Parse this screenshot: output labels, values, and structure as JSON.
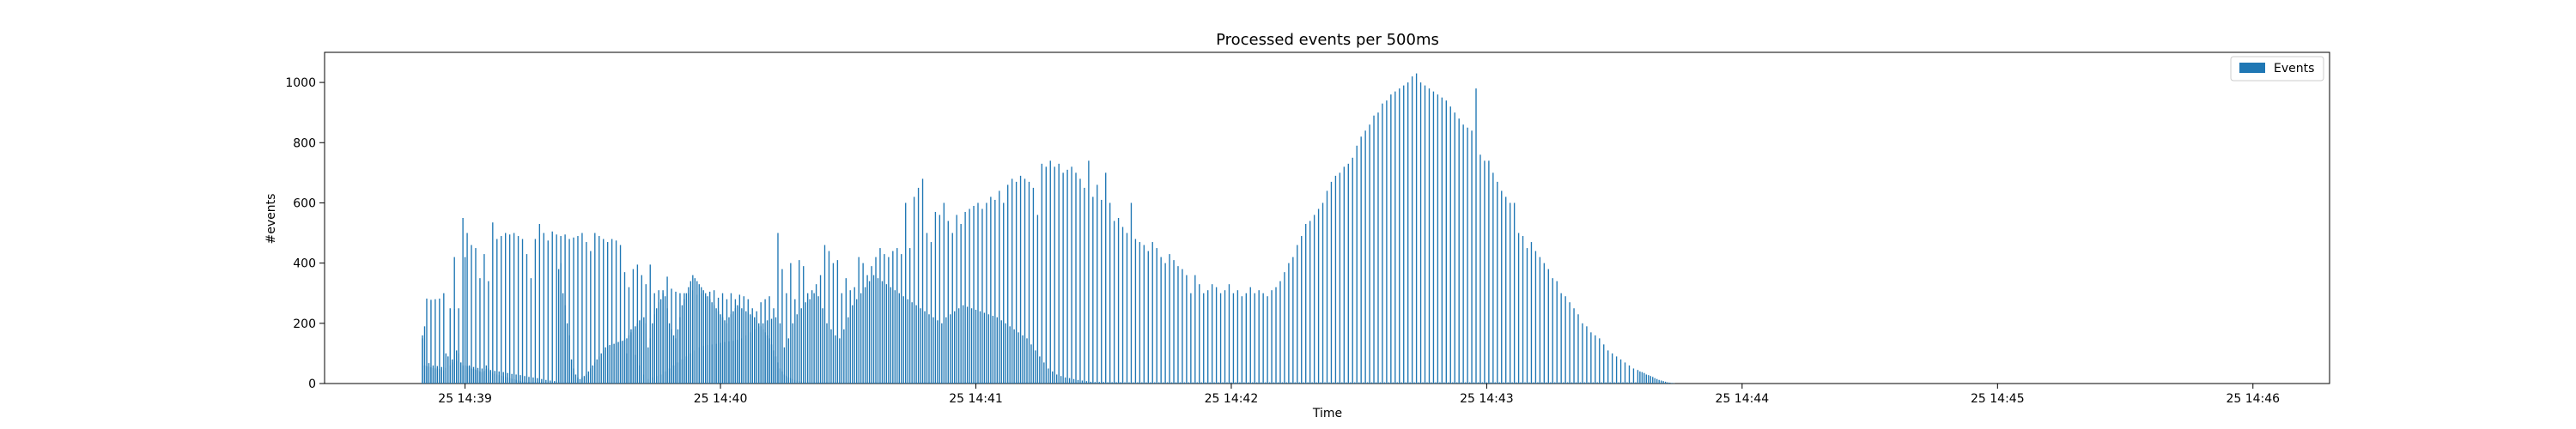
{
  "chart_data": {
    "type": "bar",
    "title": "Processed events per 500ms",
    "xlabel": "Time",
    "ylabel": "#events",
    "ylim": [
      0,
      1100
    ],
    "yticks": [
      0,
      200,
      400,
      600,
      800,
      1000
    ],
    "xlim": [
      "25 14:38:27",
      "25 14:46:18"
    ],
    "xticks": [
      {
        "time": "25 14:39:00",
        "label": "25 14:39"
      },
      {
        "time": "25 14:40:00",
        "label": "25 14:40"
      },
      {
        "time": "25 14:41:00",
        "label": "25 14:41"
      },
      {
        "time": "25 14:42:00",
        "label": "25 14:42"
      },
      {
        "time": "25 14:43:00",
        "label": "25 14:43"
      },
      {
        "time": "25 14:44:00",
        "label": "25 14:44"
      },
      {
        "time": "25 14:45:00",
        "label": "25 14:45"
      },
      {
        "time": "25 14:46:00",
        "label": "25 14:46"
      }
    ],
    "grid": false,
    "legend": "top-right",
    "bar_color": "#1f77b4",
    "interval_seconds": 0.5,
    "series": [
      {
        "name": "Events",
        "start_time": "25 14:38:50",
        "values": [
          160,
          190,
          282,
          68,
          278,
          60,
          280,
          58,
          282,
          55,
          300,
          52,
          90,
          250,
          80,
          248,
          75,
          250,
          70,
          550,
          420,
          500,
          60,
          460,
          55,
          450,
          52,
          350,
          50,
          430,
          48,
          340,
          45,
          535,
          42,
          480,
          40,
          490,
          38,
          500,
          35,
          495,
          32,
          500,
          30,
          490,
          28,
          480,
          25,
          430,
          22,
          350,
          20,
          480,
          18,
          530,
          15,
          500,
          12,
          475,
          10,
          505,
          8,
          495,
          6,
          490,
          5,
          495,
          5,
          480,
          4,
          485,
          3,
          490,
          3,
          500,
          2,
          470,
          2,
          440,
          2,
          500,
          2,
          490,
          2,
          480,
          2,
          470,
          2,
          480,
          2,
          475,
          2,
          460,
          2,
          370,
          100,
          320,
          180,
          380,
          95,
          395,
          60,
          360,
          30,
          330,
          15,
          395,
          20,
          300,
          25,
          310,
          30,
          310,
          40,
          355,
          50,
          315,
          60,
          305,
          70,
          300,
          80,
          300,
          90,
          300,
          100,
          310,
          110,
          295,
          120,
          300,
          125,
          290,
          128,
          305,
          130,
          310,
          132,
          285,
          135,
          300,
          138,
          280,
          140,
          300,
          142,
          280,
          145,
          295,
          150,
          290,
          160,
          280,
          170,
          250,
          180,
          240,
          190,
          270,
          200,
          280,
          210,
          290,
          215,
          250,
          220,
          500,
          200,
          380,
          120,
          300,
          150,
          400,
          200,
          280,
          230,
          410,
          250,
          390,
          270,
          300,
          280,
          310,
          300,
          330,
          290,
          360,
          250,
          460,
          200,
          440,
          180,
          400,
          160,
          410,
          150,
          300,
          180,
          350,
          220,
          310,
          260,
          320,
          280,
          420,
          300,
          400,
          320,
          360,
          340,
          390,
          360,
          420,
          350,
          450,
          340,
          430,
          330,
          420,
          320,
          440,
          310,
          450,
          300,
          430,
          290,
          600,
          280,
          450,
          270,
          620,
          260,
          650,
          250,
          680,
          240,
          500,
          230,
          470,
          220,
          570,
          210,
          560,
          200,
          600,
          220,
          540,
          230,
          500,
          240,
          560,
          250,
          530,
          260,
          570,
          255,
          580,
          250,
          590,
          245,
          600,
          240,
          580,
          235,
          600,
          230,
          620,
          225,
          610,
          220,
          640,
          210,
          600,
          200,
          660,
          190,
          680,
          180,
          670,
          170,
          690,
          160,
          680,
          150,
          670,
          130,
          650,
          110,
          560,
          90,
          730,
          70,
          720,
          50,
          740,
          40,
          720,
          30,
          730,
          25,
          700,
          20,
          710,
          18,
          720,
          15,
          700,
          12,
          680,
          10,
          650,
          8,
          740,
          6,
          620,
          5,
          660,
          5,
          610,
          5,
          700,
          4,
          600,
          4,
          540,
          4,
          550,
          4,
          520,
          4,
          500,
          4,
          600,
          4,
          480,
          4,
          470,
          4,
          460,
          4,
          440,
          4,
          470,
          4,
          450,
          4,
          420,
          4,
          400,
          4,
          430,
          4,
          410,
          4,
          390,
          4,
          380,
          4,
          360,
          4,
          300,
          4,
          360,
          4,
          330,
          4,
          300,
          4,
          310,
          4,
          330,
          4,
          320,
          4,
          300,
          4,
          310,
          4,
          330,
          4,
          300,
          4,
          310,
          4,
          290,
          4,
          300,
          4,
          320,
          4,
          300,
          4,
          310,
          4,
          300,
          4,
          290,
          4,
          310,
          4,
          320,
          4,
          340,
          4,
          370,
          4,
          400,
          4,
          420,
          4,
          460,
          4,
          490,
          4,
          530,
          4,
          540,
          4,
          560,
          4,
          580,
          4,
          600,
          4,
          640,
          4,
          670,
          4,
          690,
          4,
          700,
          4,
          720,
          4,
          730,
          4,
          750,
          4,
          790,
          4,
          820,
          4,
          840,
          4,
          860,
          4,
          890,
          4,
          900,
          4,
          930,
          4,
          940,
          4,
          960,
          4,
          970,
          4,
          980,
          4,
          990,
          4,
          1000,
          4,
          1020,
          4,
          1030,
          4,
          1000,
          4,
          990,
          4,
          980,
          4,
          970,
          4,
          960,
          4,
          950,
          4,
          940,
          4,
          920,
          4,
          900,
          4,
          880,
          4,
          860,
          4,
          850,
          4,
          840,
          4,
          980,
          4,
          760,
          4,
          740,
          4,
          740,
          4,
          700,
          4,
          670,
          4,
          640,
          4,
          620,
          4,
          600,
          4,
          600,
          4,
          500,
          4,
          490,
          4,
          450,
          4,
          470,
          4,
          440,
          4,
          420,
          4,
          400,
          4,
          380,
          4,
          350,
          4,
          340,
          4,
          300,
          4,
          290,
          4,
          270,
          4,
          250,
          4,
          230,
          4,
          200,
          4,
          190,
          4,
          170,
          4,
          160,
          4,
          150,
          4,
          130,
          4,
          110,
          4,
          100,
          4,
          90,
          4,
          80,
          4,
          70,
          4,
          60,
          4,
          50,
          4,
          45,
          40,
          38,
          35,
          30,
          28,
          25,
          22,
          18,
          15,
          12,
          10,
          8,
          6,
          4,
          3,
          2,
          1
        ]
      },
      {
        "name": "",
        "start_time": "25 14:38:50",
        "values": [
          150,
          60,
          58,
          56,
          54,
          52,
          50,
          50,
          48,
          46,
          44,
          100,
          90,
          60,
          70,
          420,
          110,
          100,
          70,
          60,
          60,
          58,
          56,
          50,
          48,
          46,
          44,
          40,
          38,
          42,
          60,
          50,
          40,
          36,
          32,
          30,
          28,
          26,
          24,
          22,
          20,
          18,
          16,
          14,
          12,
          10,
          8,
          6,
          5,
          5,
          5,
          5,
          5,
          5,
          5,
          5,
          5,
          5,
          5,
          5,
          5,
          5,
          5,
          5,
          380,
          400,
          300,
          260,
          200,
          160,
          80,
          50,
          30,
          20,
          15,
          20,
          25,
          30,
          40,
          50,
          60,
          70,
          80,
          90,
          100,
          110,
          120,
          125,
          128,
          130,
          132,
          135,
          138,
          140,
          142,
          145,
          150,
          160,
          170,
          180,
          190,
          200,
          210,
          215,
          220,
          200,
          120,
          150,
          200,
          230,
          250,
          270,
          280,
          300,
          290,
          250,
          200,
          180,
          160,
          150,
          180,
          220,
          260,
          280,
          300,
          320,
          340,
          360,
          350,
          340,
          330,
          320,
          310,
          300,
          290,
          280,
          270,
          260,
          250,
          240,
          230,
          220,
          210,
          200,
          220,
          230,
          240,
          250,
          260,
          255,
          250,
          245,
          240,
          235,
          230,
          225,
          220,
          210,
          200,
          190,
          180,
          170,
          160,
          150,
          130,
          110,
          90,
          70,
          50,
          40,
          30,
          25,
          20,
          18,
          15,
          12,
          10,
          8,
          6,
          5,
          5,
          5,
          4,
          4,
          4,
          4,
          4,
          4,
          4,
          4,
          4,
          4,
          4,
          4,
          4,
          4,
          4,
          4,
          4,
          4,
          4,
          4,
          4,
          4,
          4,
          4,
          4,
          4,
          4,
          4,
          4,
          4,
          4,
          4,
          4,
          4,
          4,
          4,
          4,
          4,
          4,
          4,
          4,
          4,
          4,
          4,
          4,
          4,
          4,
          4,
          4,
          4,
          4,
          4,
          4,
          4,
          4,
          4,
          4,
          4,
          4,
          4,
          4,
          4,
          4,
          4,
          4,
          4,
          4,
          4,
          4,
          4,
          4,
          4,
          4,
          4,
          4,
          4,
          4,
          4,
          4,
          4,
          4,
          4,
          4,
          4,
          4,
          4,
          4,
          4,
          4,
          4,
          4,
          4,
          4,
          4,
          4,
          4,
          4,
          4,
          4,
          4,
          4,
          4,
          4,
          4,
          4,
          4,
          4,
          4,
          4,
          4,
          4,
          4,
          4,
          4,
          4,
          4,
          4,
          4,
          4,
          4,
          4,
          4,
          4,
          4,
          4,
          4,
          4,
          4,
          4,
          4,
          4,
          4,
          4,
          4,
          4,
          4,
          4,
          4,
          4,
          4,
          4,
          4,
          4,
          4,
          4,
          4,
          4
        ]
      }
    ]
  }
}
